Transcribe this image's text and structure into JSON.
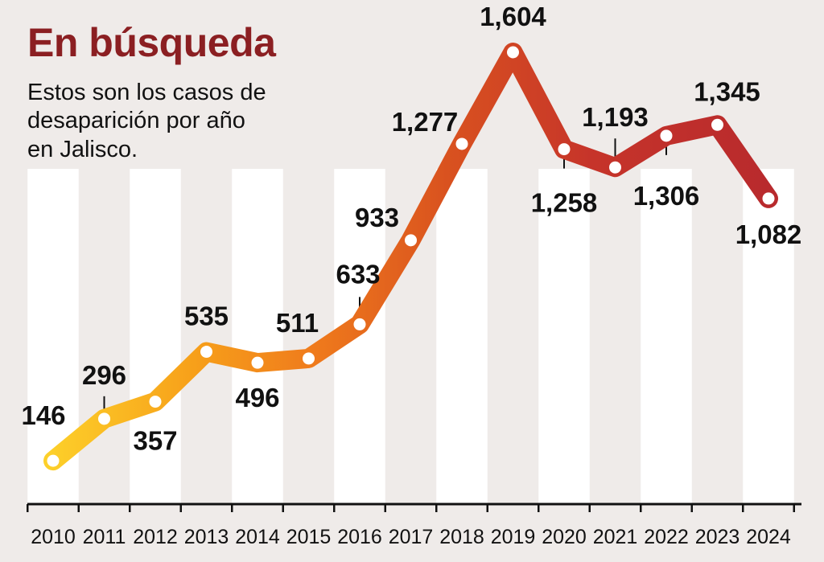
{
  "header": {
    "title": "En búsqueda",
    "subtitle_lines": [
      "Estos son los casos de",
      "desaparición por año",
      "en Jalisco."
    ]
  },
  "colors": {
    "title": "#8b1f22",
    "background": "#efebe9",
    "stripe": "#ffffff",
    "line_gradient": [
      "#fdd02a",
      "#f7a01a",
      "#ef7a1c",
      "#d9521f",
      "#c6342a",
      "#b82a2d"
    ],
    "marker_fill": "#ffffff"
  },
  "chart_data": {
    "type": "line",
    "title": "En búsqueda",
    "subtitle": "Estos son los casos de desaparición por año en Jalisco.",
    "xlabel": "",
    "ylabel": "",
    "categories": [
      "2010",
      "2011",
      "2012",
      "2013",
      "2014",
      "2015",
      "2016",
      "2017",
      "2018",
      "2019",
      "2020",
      "2021",
      "2022",
      "2023",
      "2024"
    ],
    "values": [
      146,
      296,
      357,
      535,
      496,
      511,
      633,
      933,
      1277,
      1604,
      1258,
      1193,
      1306,
      1345,
      1082
    ],
    "value_labels": [
      "146",
      "296",
      "357",
      "535",
      "496",
      "511",
      "633",
      "933",
      "1,277",
      "1,604",
      "1,258",
      "1,193",
      "1,306",
      "1,345",
      "1,082"
    ],
    "ylim": [
      0,
      1700
    ],
    "grid": false,
    "legend": "none"
  }
}
